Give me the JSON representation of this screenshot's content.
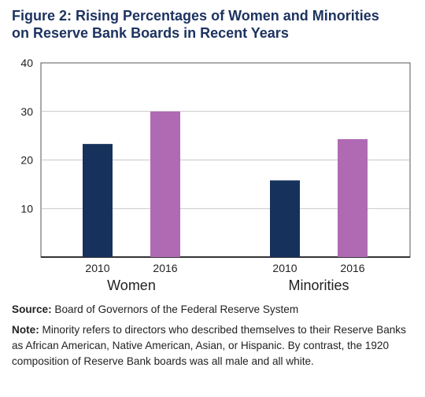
{
  "title_line1": "Figure 2: Rising Percentages of Women and Minorities",
  "title_line2": "on Reserve Bank Boards in Recent Years",
  "source_label": "Source:",
  "source_text": "Board of Governors of the Federal Reserve System",
  "note_label": "Note:",
  "note_text": "Minority refers to directors who described themselves to their Reserve Banks as African American, Native American, Asian, or Hispanic. By contrast, the 1920 composition of Reserve Bank boards was all male and all white.",
  "chart_data": {
    "type": "bar",
    "groups": [
      "Women",
      "Minorities"
    ],
    "series": [
      {
        "name": "2010",
        "values": [
          23.3,
          15.8
        ],
        "color": "#16325c"
      },
      {
        "name": "2016",
        "values": [
          30,
          24.3
        ],
        "color": "#b06ab3"
      }
    ],
    "ylim": [
      0,
      40
    ],
    "yticks": [
      10,
      20,
      30,
      40
    ],
    "grid": true
  }
}
